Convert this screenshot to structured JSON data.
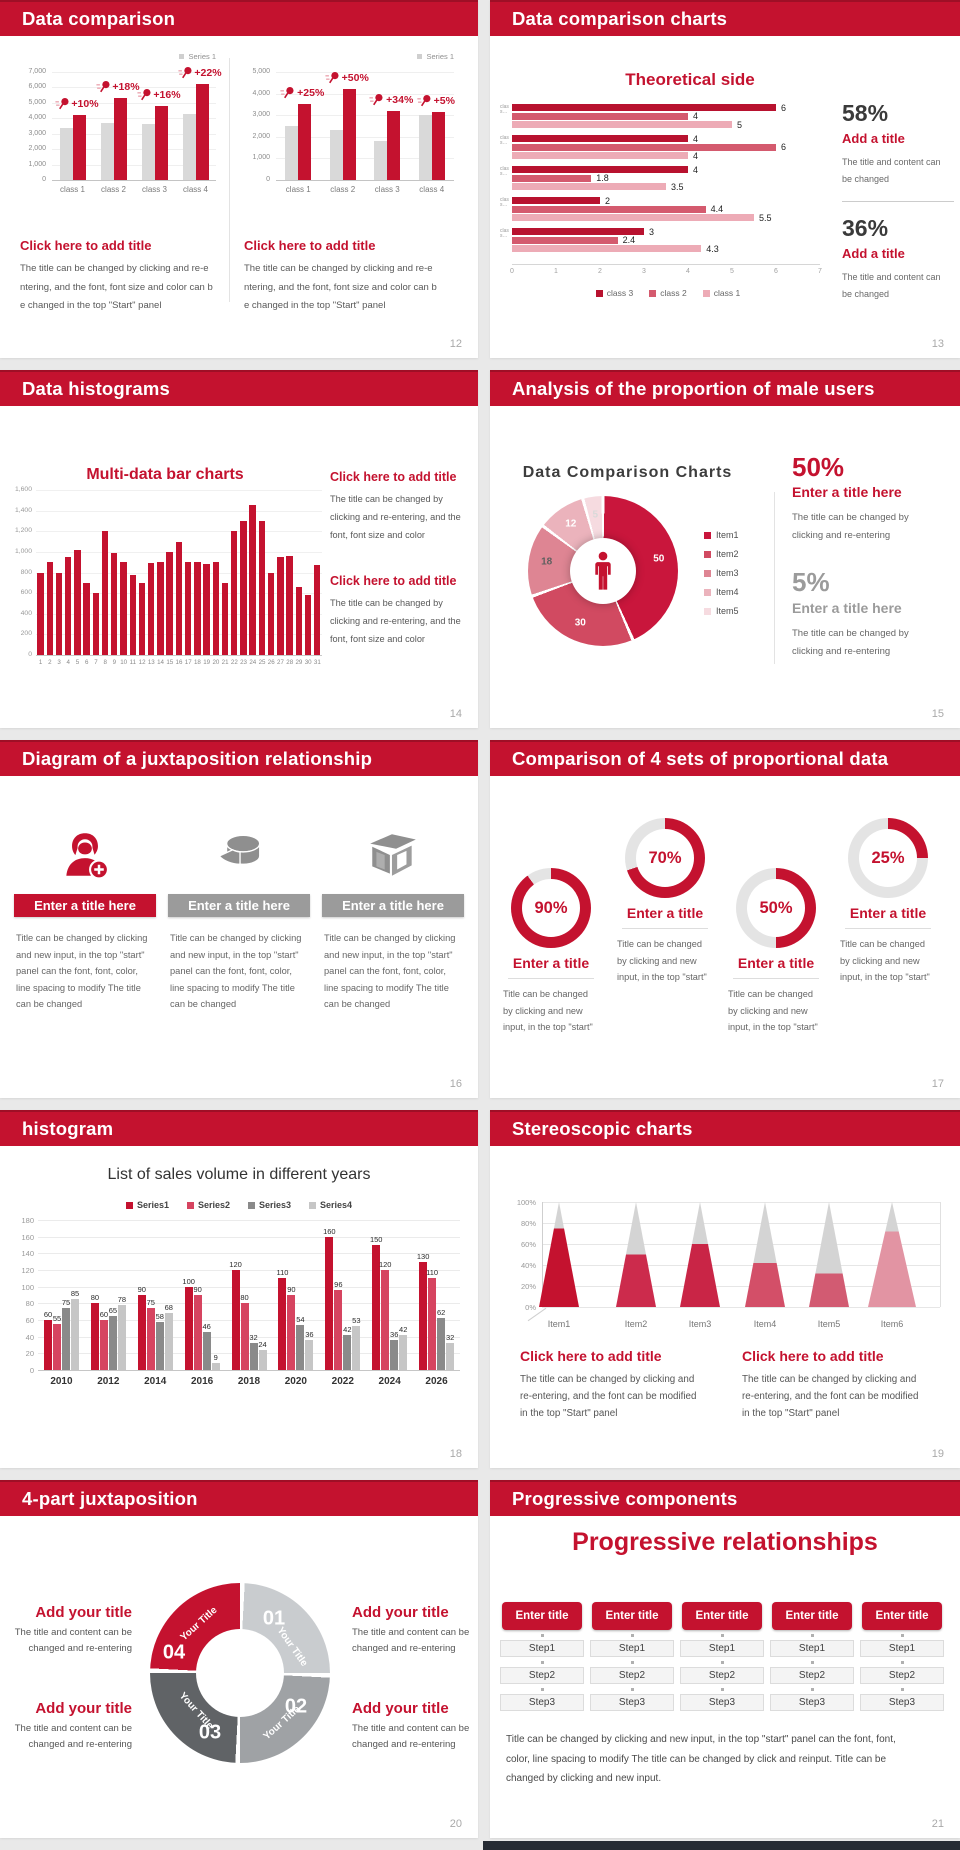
{
  "page": {
    "background": "#e9e9e9",
    "accent_red": "#c4122f",
    "footer_bar_color": "#262b34"
  },
  "slides": [
    {
      "title": "Data comparison",
      "page_num": "12",
      "charts": [
        {
          "legend": "Series 1",
          "yticks": [
            "7,000",
            "6,000",
            "5,000",
            "4,000",
            "3,000",
            "2,000",
            "1,000",
            "0"
          ],
          "ymax": 7000,
          "categories": [
            "class 1",
            "class 2",
            "class 3",
            "class 4"
          ],
          "series": [
            {
              "name": "base",
              "color": "#d9d9d9",
              "values": [
                3400,
                3700,
                3600,
                4300
              ]
            },
            {
              "name": "Series 1",
              "color": "#c4122f",
              "values": [
                4200,
                5300,
                4800,
                6200
              ]
            }
          ],
          "bar_labels": [
            "+10%",
            "+18%",
            "+16%",
            "+22%"
          ]
        },
        {
          "legend": "Series 1",
          "yticks": [
            "5,000",
            "4,000",
            "3,000",
            "2,000",
            "1,000",
            "0"
          ],
          "ymax": 5000,
          "categories": [
            "class 1",
            "class 2",
            "class 3",
            "class 4"
          ],
          "series": [
            {
              "name": "base",
              "color": "#d9d9d9",
              "values": [
                2500,
                2300,
                1800,
                3000
              ]
            },
            {
              "name": "Series 1",
              "color": "#c4122f",
              "values": [
                3500,
                4200,
                3200,
                3150
              ]
            }
          ],
          "bar_labels": [
            "+25%",
            "+50%",
            "+34%",
            "+5%"
          ]
        }
      ],
      "blocks": [
        {
          "heading": "Click here to add title",
          "body": [
            "The title can be changed by clicking and re-e",
            "ntering, and the font, font size and color can b",
            "e changed in the top \"Start\" panel"
          ]
        },
        {
          "heading": "Click here to add title",
          "body": [
            "The title can be changed by clicking and re-e",
            "ntering, and the font, font size and color can b",
            "e changed in the top \"Start\" panel"
          ]
        }
      ]
    },
    {
      "title": "Data comparison charts",
      "page_num": "13",
      "chart_title": "Theoretical side",
      "chart_data": {
        "type": "bar",
        "orientation": "horizontal",
        "xticks": [
          "0",
          "1",
          "2",
          "3",
          "4",
          "5",
          "6",
          "7"
        ],
        "xmax": 7,
        "y_axis_label": "class…",
        "legend": [
          "class 3",
          "class 2",
          "class 1"
        ],
        "colors": [
          "#b8122f",
          "#d45a6e",
          "#edabb6"
        ],
        "groups": [
          {
            "values": [
              6,
              4,
              5
            ]
          },
          {
            "values": [
              4,
              6,
              4
            ]
          },
          {
            "values": [
              4,
              1.8,
              3.5
            ]
          },
          {
            "values": [
              2,
              4.4,
              5.5
            ]
          },
          {
            "values": [
              3,
              2.4,
              4.3
            ]
          }
        ]
      },
      "stats": [
        {
          "pct": "58%",
          "title": "Add a title",
          "body": [
            "The title and content can",
            "be changed"
          ]
        },
        {
          "pct": "36%",
          "title": "Add a title",
          "body": [
            "The title and content can",
            "be changed"
          ]
        }
      ]
    },
    {
      "title": "Data histograms",
      "page_num": "14",
      "chart_data": {
        "type": "bar",
        "title": "Multi-data bar charts",
        "yticks": [
          "1,600",
          "1,400",
          "1,200",
          "1,000",
          "800",
          "600",
          "400",
          "200",
          "0"
        ],
        "ymax": 1600,
        "color": "#c4122f",
        "x": [
          "1",
          "2",
          "3",
          "4",
          "5",
          "6",
          "7",
          "8",
          "9",
          "10",
          "11",
          "12",
          "13",
          "14",
          "15",
          "16",
          "17",
          "18",
          "19",
          "20",
          "21",
          "22",
          "23",
          "24",
          "25",
          "26",
          "27",
          "28",
          "29",
          "30",
          "31"
        ],
        "values": [
          800,
          900,
          800,
          950,
          1020,
          700,
          600,
          1200,
          990,
          900,
          780,
          700,
          890,
          900,
          1000,
          1100,
          900,
          900,
          880,
          900,
          700,
          1200,
          1300,
          1450,
          1300,
          800,
          950,
          960,
          660,
          580,
          870
        ]
      },
      "blocks": [
        {
          "heading": "Click here to add title",
          "body": [
            "The title can be changed by",
            "clicking and re-entering, and the",
            "font, font size and color"
          ]
        },
        {
          "heading": "Click here to add title",
          "body": [
            "The title can be changed by",
            "clicking and re-entering, and the",
            "font, font size and color"
          ]
        }
      ]
    },
    {
      "title": "Analysis of the proportion of male users",
      "page_num": "15",
      "chart_data": {
        "type": "pie",
        "title": "Data Comparison Charts",
        "labels": [
          "Item1",
          "Item2",
          "Item3",
          "Item4",
          "Item5"
        ],
        "values": [
          50,
          30,
          18,
          12,
          5
        ],
        "colors": [
          "#c9163c",
          "#d14a61",
          "#de8593",
          "#ebb3bc",
          "#f6dbe0"
        ]
      },
      "stats": [
        {
          "pct": "50%",
          "title": "Enter a title here",
          "body": [
            "The title can be changed by",
            "clicking and re-entering"
          ]
        },
        {
          "pct": "5%",
          "title": "Enter a title here",
          "body": [
            "The title can be changed by",
            "clicking and re-entering"
          ]
        }
      ]
    },
    {
      "title": "Diagram of a juxtaposition relationship",
      "page_num": "16",
      "columns": [
        {
          "icon": "person-plus",
          "bar_title": "Enter a title here",
          "bar_color": "#c4122f",
          "body": [
            "Title can be changed by clicking",
            "and new input, in the top \"start\"",
            "panel can the font, font, color,",
            "line spacing to modify The title",
            "can be changed"
          ]
        },
        {
          "icon": "pie-3d",
          "bar_title": "Enter a title here",
          "bar_color": "#9b9b9b",
          "body": [
            "Title can be changed by clicking",
            "and new input, in the top \"start\"",
            "panel can the font, font, color,",
            "line spacing to modify The title",
            "can be changed"
          ]
        },
        {
          "icon": "store",
          "bar_title": "Enter a title here",
          "bar_color": "#9b9b9b",
          "body": [
            "Title can be changed by clicking",
            "and new input, in the top \"start\"",
            "panel can the font, font, color,",
            "line spacing to modify The title",
            "can be changed"
          ]
        }
      ]
    },
    {
      "title": "Comparison of 4 sets of proportional data",
      "page_num": "17",
      "chart_data": {
        "type": "pie",
        "variant": "progress-rings",
        "values": [
          90,
          70,
          50,
          25
        ]
      },
      "rings": [
        {
          "pct": "90%",
          "value": 90,
          "title": "Enter a title",
          "body": [
            "Title can be changed",
            "by clicking and new",
            "input, in the top \"start\""
          ]
        },
        {
          "pct": "70%",
          "value": 70,
          "title": "Enter a title",
          "body": [
            "Title can be changed",
            "by clicking and new",
            "input, in the top \"start\""
          ]
        },
        {
          "pct": "50%",
          "value": 50,
          "title": "Enter a title",
          "body": [
            "Title can be changed",
            "by clicking and new",
            "input, in the top \"start\""
          ]
        },
        {
          "pct": "25%",
          "value": 25,
          "title": "Enter a title",
          "body": [
            "Title can be changed",
            "by clicking and new",
            "input, in the top \"start\""
          ]
        }
      ]
    },
    {
      "title": "histogram",
      "page_num": "18",
      "chart_data": {
        "type": "bar",
        "title": "List of sales volume in different years",
        "categories": [
          "2010",
          "2012",
          "2014",
          "2016",
          "2018",
          "2020",
          "2022",
          "2024",
          "2026"
        ],
        "ymax": 180,
        "ytick_step": 20,
        "series": [
          {
            "name": "Series1",
            "color": "#c4122f",
            "values": [
              60,
              80,
              90,
              100,
              120,
              110,
              160,
              150,
              130
            ]
          },
          {
            "name": "Series2",
            "color": "#d64460",
            "values": [
              55,
              60,
              75,
              90,
              80,
              90,
              96,
              120,
              110
            ]
          },
          {
            "name": "Series3",
            "color": "#8a8a8a",
            "values": [
              75,
              65,
              58,
              46,
              32,
              54,
              42,
              36,
              62
            ]
          },
          {
            "name": "Series4",
            "color": "#c6c6c6",
            "values": [
              85,
              78,
              68,
              9,
              24,
              36,
              53,
              42,
              32
            ]
          }
        ]
      }
    },
    {
      "title": "Stereoscopic charts",
      "page_num": "19",
      "chart_data": {
        "type": "bar",
        "variant": "cone",
        "categories": [
          "Item1",
          "Item2",
          "Item3",
          "Item4",
          "Item5",
          "Item6"
        ],
        "values_pct": [
          75,
          50,
          60,
          42,
          32,
          72
        ],
        "yticks": [
          "100%",
          "80%",
          "60%",
          "40%",
          "20%",
          "0%"
        ],
        "colors": [
          "#c4122f",
          "#cc2b4c",
          "#c92546",
          "#d34f68",
          "#d25b72",
          "#e294a3"
        ]
      },
      "blocks": [
        {
          "heading": "Click here to add title",
          "body": [
            "The title can be changed by clicking and",
            "re-entering, and the font can be modified",
            "in the top \"Start\" panel"
          ]
        },
        {
          "heading": "Click here to add title",
          "body": [
            "The title can be changed by clicking and",
            "re-entering, and the font can be modified",
            "in the top \"Start\" panel"
          ]
        }
      ]
    },
    {
      "title": "4-part juxtaposition",
      "page_num": "20",
      "wheel": {
        "segments": [
          {
            "num": "01",
            "label": "Your Title",
            "color": "#c9cccf"
          },
          {
            "num": "02",
            "label": "Your Title",
            "color": "#9fa2a5"
          },
          {
            "num": "03",
            "label": "Your Title",
            "color": "#606366"
          },
          {
            "num": "04",
            "label": "Your Title",
            "color": "#c4122f"
          }
        ]
      },
      "texts": [
        {
          "heading": "Add your title",
          "body": [
            "The title and content can be",
            "changed and re-entering"
          ]
        },
        {
          "heading": "Add your title",
          "body": [
            "The title and content can be",
            "changed and re-entering"
          ]
        },
        {
          "heading": "Add your title",
          "body": [
            "The title and content can be",
            "changed and re-entering"
          ]
        },
        {
          "heading": "Add your title",
          "body": [
            "The title and content can be",
            "changed and re-entering"
          ]
        }
      ]
    },
    {
      "title": "Progressive components",
      "page_num": "21",
      "big_title": "Progressive relationships",
      "columns": [
        {
          "header": "Enter title",
          "steps": [
            "Step1",
            "Step2",
            "Step3"
          ]
        },
        {
          "header": "Enter title",
          "steps": [
            "Step1",
            "Step2",
            "Step3"
          ]
        },
        {
          "header": "Enter title",
          "steps": [
            "Step1",
            "Step2",
            "Step3"
          ]
        },
        {
          "header": "Enter title",
          "steps": [
            "Step1",
            "Step2",
            "Step3"
          ]
        },
        {
          "header": "Enter title",
          "steps": [
            "Step1",
            "Step2",
            "Step3"
          ]
        }
      ],
      "body": [
        "Title can be changed by clicking and new input, in the top \"start\" panel can the font, font,",
        "color, line spacing to modify The title can be changed by click and reinput. Title can be",
        "changed by clicking and new input."
      ]
    }
  ]
}
